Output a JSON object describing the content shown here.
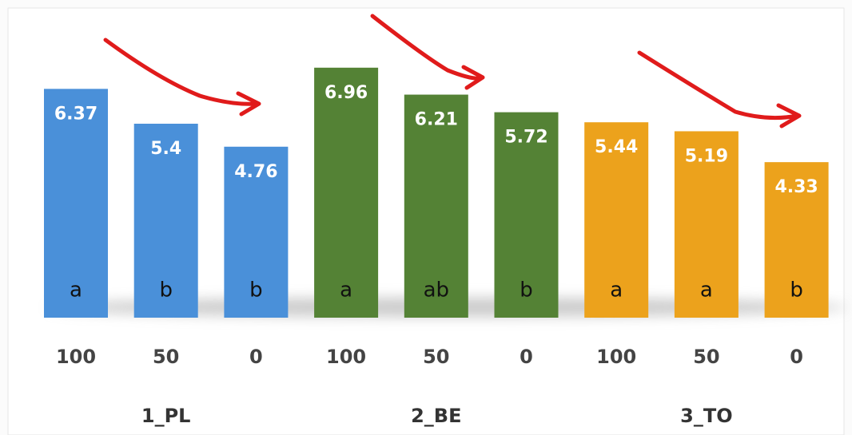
{
  "chart_data": {
    "type": "bar",
    "categories": [
      "100",
      "50",
      "0"
    ],
    "series": [
      {
        "name": "1_PL",
        "color": "#4a90d9",
        "values": [
          6.37,
          5.4,
          4.76
        ],
        "letters": [
          "a",
          "b",
          "b"
        ]
      },
      {
        "name": "2_BE",
        "color": "#548235",
        "values": [
          6.96,
          6.21,
          5.72
        ],
        "letters": [
          "a",
          "ab",
          "b"
        ]
      },
      {
        "name": "3_TO",
        "color": "#eca21c",
        "values": [
          5.44,
          5.19,
          4.33
        ],
        "letters": [
          "a",
          "a",
          "b"
        ]
      }
    ]
  }
}
